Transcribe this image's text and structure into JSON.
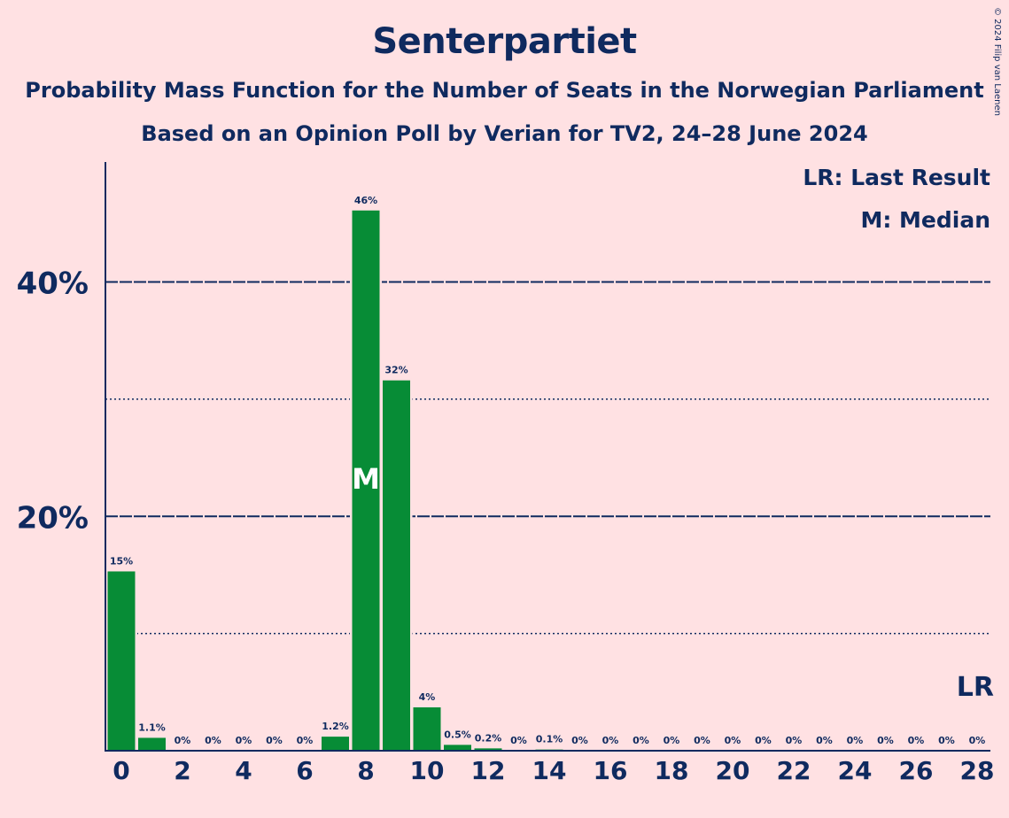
{
  "header": {
    "title": "Senterpartiet",
    "subtitle1": "Probability Mass Function for the Number of Seats in the Norwegian Parliament",
    "subtitle2": "Based on an Opinion Poll by Verian for TV2, 24–28 June 2024",
    "copyright": "© 2024 Filip van Laenen"
  },
  "legend": {
    "last_result": "LR: Last Result",
    "median": "M: Median"
  },
  "colors": {
    "bar": "#078c36",
    "text": "#0f2a5f",
    "background": "#ffe1e3"
  },
  "chart_data": {
    "type": "bar",
    "x": [
      0,
      1,
      2,
      3,
      4,
      5,
      6,
      7,
      8,
      9,
      10,
      11,
      12,
      13,
      14,
      15,
      16,
      17,
      18,
      19,
      20,
      21,
      22,
      23,
      24,
      25,
      26,
      27,
      28
    ],
    "values": [
      15.3,
      1.1,
      0,
      0,
      0,
      0,
      0,
      1.2,
      46.1,
      31.6,
      3.7,
      0.5,
      0.2,
      0,
      0.1,
      0,
      0,
      0,
      0,
      0,
      0,
      0,
      0,
      0,
      0,
      0,
      0,
      0,
      0
    ],
    "labels": [
      "15%",
      "1.1%",
      "0%",
      "0%",
      "0%",
      "0%",
      "0%",
      "1.2%",
      "46%",
      "32%",
      "4%",
      "0.5%",
      "0.2%",
      "0%",
      "0.1%",
      "0%",
      "0%",
      "0%",
      "0%",
      "0%",
      "0%",
      "0%",
      "0%",
      "0%",
      "0%",
      "0%",
      "0%",
      "0%",
      "0%"
    ],
    "x_tick_labels": [
      "0",
      "2",
      "4",
      "6",
      "8",
      "10",
      "12",
      "14",
      "16",
      "18",
      "20",
      "22",
      "24",
      "26",
      "28"
    ],
    "x_tick_values": [
      0,
      2,
      4,
      6,
      8,
      10,
      12,
      14,
      16,
      18,
      20,
      22,
      24,
      26,
      28
    ],
    "y_tick_labels": [
      "20%",
      "40%"
    ],
    "y_tick_values": [
      20,
      40
    ],
    "ylim": [
      0,
      50
    ],
    "grid_major": [
      20,
      40
    ],
    "grid_minor": [
      10,
      30
    ],
    "median_seat": 8,
    "median_marker": "M",
    "last_result_seat": 28,
    "last_result_marker": "LR"
  }
}
